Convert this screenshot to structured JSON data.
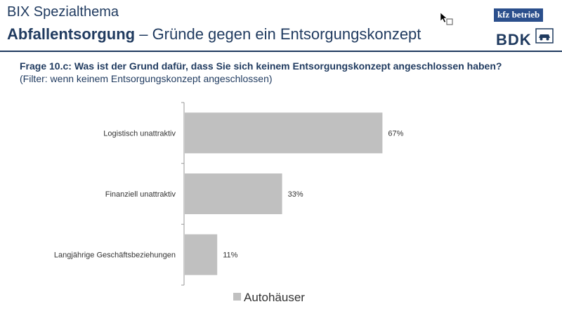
{
  "header": {
    "title": "BIX Spezialthema",
    "subtitle_strong": "Abfallentsorgung",
    "subtitle_rest": " – Gründe gegen ein Entsorgungskonzept"
  },
  "logos": {
    "kfz": "kfz betrieb",
    "bdk": "BDK"
  },
  "question": "Frage 10.c: Was ist der Grund dafür, dass Sie sich keinem Entsorgungskonzept angeschlossen haben?",
  "filter": "(Filter: wenn keinem Entsorgungskonzept angeschlossen)",
  "colors": {
    "bar": "#c0c0c0",
    "text": "#333333",
    "brand": "#1f3a5f"
  },
  "chart_data": {
    "type": "bar",
    "orientation": "horizontal",
    "categories": [
      "Logistisch unattraktiv",
      "Finanziell unattraktiv",
      "Langjährige Geschäftsbeziehungen"
    ],
    "series": [
      {
        "name": "Autohäuser",
        "values": [
          67,
          33,
          11
        ]
      }
    ],
    "value_labels": [
      "67%",
      "33%",
      "11%"
    ],
    "xlim": [
      0,
      100
    ],
    "legend": "bottom"
  }
}
